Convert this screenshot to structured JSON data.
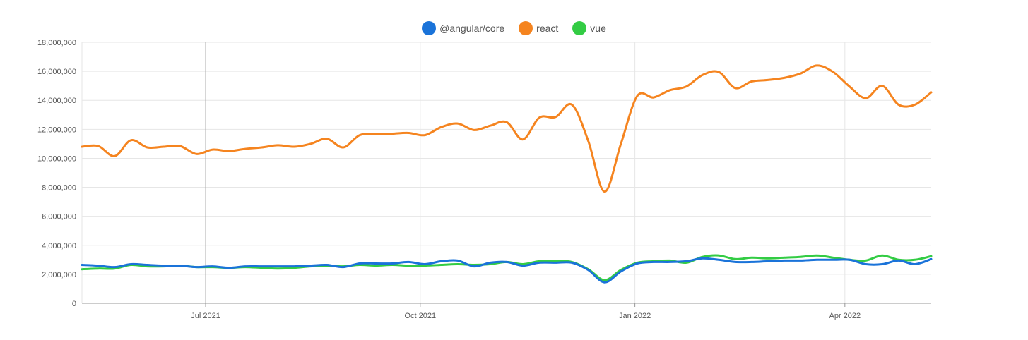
{
  "chart_data": {
    "type": "line",
    "title": "",
    "xlabel": "",
    "ylabel": "",
    "ylim": [
      0,
      18000000
    ],
    "yticks": [
      0,
      2000000,
      4000000,
      6000000,
      8000000,
      10000000,
      12000000,
      14000000,
      16000000,
      18000000
    ],
    "ytick_labels": [
      "0",
      "2,000,000",
      "4,000,000",
      "6,000,000",
      "8,000,000",
      "10,000,000",
      "12,000,000",
      "14,000,000",
      "16,000,000",
      "18,000,000"
    ],
    "xlim": [
      "2021-05-09",
      "2022-05-08"
    ],
    "xticks": [
      {
        "date": "2021-07-01",
        "label": "Jul 2021"
      },
      {
        "date": "2021-10-01",
        "label": "Oct 2021"
      },
      {
        "date": "2022-01-01",
        "label": "Jan 2022"
      },
      {
        "date": "2022-04-01",
        "label": "Apr 2022"
      }
    ],
    "grid": true,
    "legend_position": "top-center",
    "x": [
      "2021-05-09",
      "2021-05-16",
      "2021-05-23",
      "2021-05-30",
      "2021-06-06",
      "2021-06-13",
      "2021-06-20",
      "2021-06-27",
      "2021-07-04",
      "2021-07-11",
      "2021-07-18",
      "2021-07-25",
      "2021-08-01",
      "2021-08-08",
      "2021-08-15",
      "2021-08-22",
      "2021-08-29",
      "2021-09-05",
      "2021-09-12",
      "2021-09-19",
      "2021-09-26",
      "2021-10-03",
      "2021-10-10",
      "2021-10-17",
      "2021-10-24",
      "2021-10-31",
      "2021-11-07",
      "2021-11-14",
      "2021-11-21",
      "2021-11-28",
      "2021-12-05",
      "2021-12-12",
      "2021-12-19",
      "2021-12-26",
      "2022-01-02",
      "2022-01-09",
      "2022-01-16",
      "2022-01-23",
      "2022-01-30",
      "2022-02-06",
      "2022-02-13",
      "2022-02-20",
      "2022-02-27",
      "2022-03-06",
      "2022-03-13",
      "2022-03-20",
      "2022-03-27",
      "2022-04-03",
      "2022-04-10",
      "2022-04-17",
      "2022-04-24",
      "2022-05-01",
      "2022-05-08"
    ],
    "series": [
      {
        "name": "@angular/core",
        "color": "#1a73d9",
        "values": [
          2650000,
          2600000,
          2500000,
          2700000,
          2650000,
          2600000,
          2600000,
          2500000,
          2550000,
          2450000,
          2550000,
          2550000,
          2550000,
          2550000,
          2600000,
          2650000,
          2500000,
          2750000,
          2750000,
          2750000,
          2850000,
          2700000,
          2900000,
          2950000,
          2550000,
          2800000,
          2850000,
          2600000,
          2800000,
          2800000,
          2800000,
          2300000,
          1450000,
          2200000,
          2750000,
          2850000,
          2850000,
          2900000,
          3100000,
          3000000,
          2850000,
          2850000,
          2900000,
          2950000,
          2950000,
          3000000,
          3000000,
          3000000,
          2700000,
          2700000,
          2950000,
          2700000,
          3050000
        ]
      },
      {
        "name": "react",
        "color": "#f5841f",
        "values": [
          10800000,
          10850000,
          10150000,
          11250000,
          10750000,
          10800000,
          10850000,
          10300000,
          10600000,
          10500000,
          10650000,
          10750000,
          10900000,
          10800000,
          11000000,
          11350000,
          10750000,
          11600000,
          11650000,
          11700000,
          11750000,
          11600000,
          12150000,
          12400000,
          11950000,
          12250000,
          12500000,
          11300000,
          12800000,
          12850000,
          13700000,
          11200000,
          7700000,
          11000000,
          14300000,
          14200000,
          14700000,
          14950000,
          15750000,
          15950000,
          14850000,
          15300000,
          15400000,
          15550000,
          15850000,
          16400000,
          15950000,
          14950000,
          14150000,
          15000000,
          13700000,
          13700000,
          14550000
        ]
      },
      {
        "name": "vue",
        "color": "#33cc44",
        "values": [
          2350000,
          2400000,
          2400000,
          2650000,
          2550000,
          2550000,
          2600000,
          2500000,
          2500000,
          2450000,
          2500000,
          2450000,
          2400000,
          2450000,
          2550000,
          2600000,
          2550000,
          2650000,
          2600000,
          2650000,
          2600000,
          2600000,
          2650000,
          2700000,
          2650000,
          2700000,
          2850000,
          2700000,
          2900000,
          2900000,
          2850000,
          2350000,
          1600000,
          2300000,
          2800000,
          2900000,
          2950000,
          2800000,
          3200000,
          3300000,
          3050000,
          3150000,
          3100000,
          3150000,
          3200000,
          3300000,
          3150000,
          3000000,
          2950000,
          3300000,
          3000000,
          3000000,
          3250000
        ]
      }
    ]
  }
}
